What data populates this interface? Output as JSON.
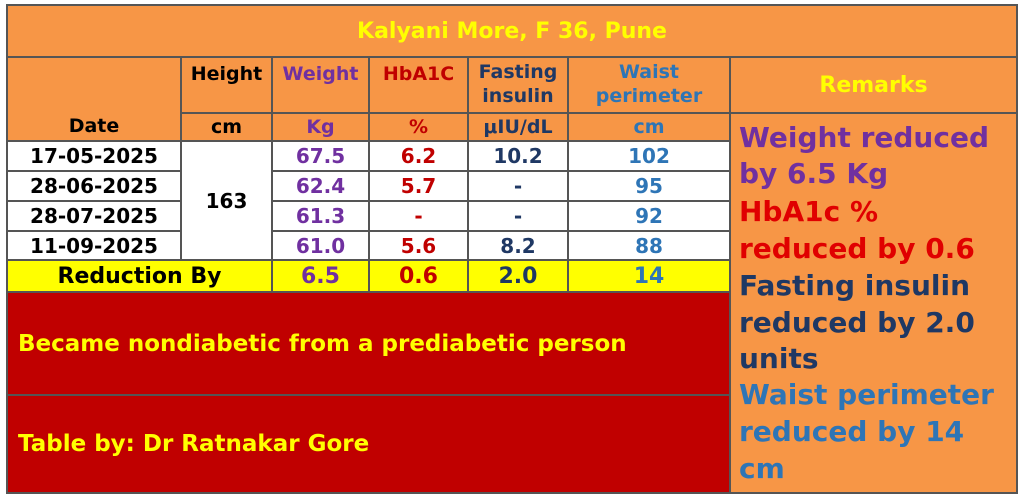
{
  "title": "Kalyani More, F 36, Pune",
  "colors": {
    "orange": "#f79646",
    "yellow": "#ffff00",
    "red_band": "#c00000",
    "weight": "#7030a0",
    "hba1c": "#e00000",
    "insulin": "#1f3864",
    "waist": "#2e75b6"
  },
  "headers": {
    "date": "Date",
    "height": "Height",
    "height_unit": "cm",
    "weight": "Weight",
    "weight_unit": "Kg",
    "hba1c": "HbA1C",
    "hba1c_unit": "%",
    "insulin_1": "Fasting",
    "insulin_2": "insulin",
    "insulin_unit": "μIU/dL",
    "waist_1": "Waist",
    "waist_2": "perimeter",
    "waist_unit": "cm",
    "remarks": "Remarks"
  },
  "height_value": "163",
  "rows": [
    {
      "date": "17-05-2025",
      "weight": "67.5",
      "hba1c": "6.2",
      "insulin": "10.2",
      "waist": "102"
    },
    {
      "date": "28-06-2025",
      "weight": "62.4",
      "hba1c": "5.7",
      "insulin": "-",
      "waist": "95"
    },
    {
      "date": "28-07-2025",
      "weight": "61.3",
      "hba1c": "-",
      "insulin": "-",
      "waist": "92"
    },
    {
      "date": "11-09-2025",
      "weight": "61.0",
      "hba1c": "5.6",
      "insulin": "8.2",
      "waist": "88"
    }
  ],
  "reduction": {
    "label": "Reduction By",
    "weight": "6.5",
    "hba1c": "0.6",
    "insulin": "2.0",
    "waist": "14"
  },
  "summary": "Became nondiabetic from a prediabetic person",
  "credit": "Table by: Dr Ratnakar Gore",
  "remarks": {
    "weight_1": "Weight reduced",
    "weight_2": "by 6.5 Kg",
    "hba1c_1": "HbA1c %",
    "hba1c_2": "reduced by 0.6",
    "insulin_1": "Fasting insulin",
    "insulin_2": "reduced by 2.0",
    "insulin_3": "units",
    "waist_1": "Waist perimeter",
    "waist_2": "reduced by 14",
    "waist_3": "cm"
  }
}
